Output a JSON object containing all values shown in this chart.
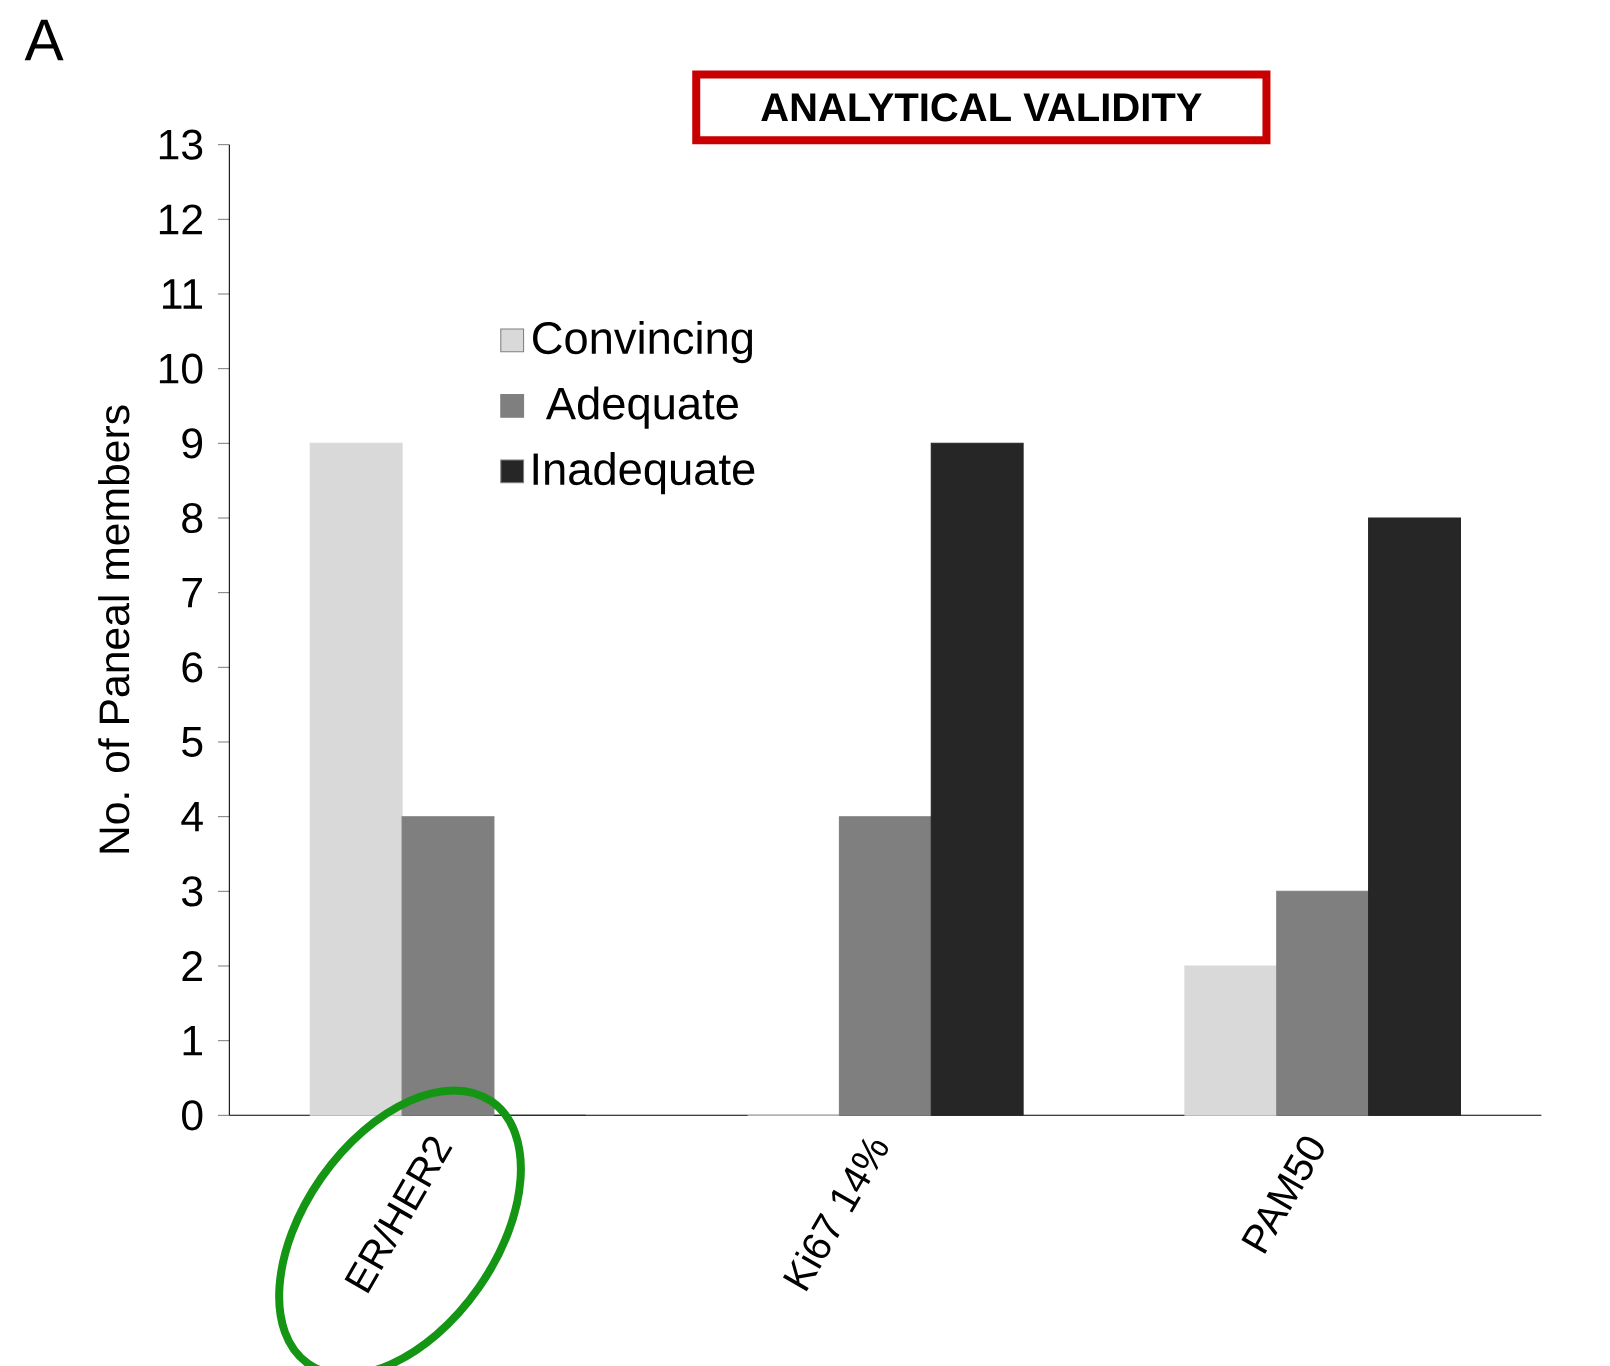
{
  "chart_data": {
    "type": "bar",
    "title": "ANALYTICAL VALIDITY",
    "ylabel": "No. of Paneal members",
    "annotations": [
      "A"
    ],
    "categories": [
      "ER/HER2",
      "Ki67 14%",
      "PAM50"
    ],
    "series": [
      {
        "name": "Convincing",
        "color": "#d9d9d9",
        "values": [
          9,
          0,
          2
        ]
      },
      {
        "name": "Adequate",
        "color": "#7f7f7f",
        "values": [
          4,
          4,
          3
        ]
      },
      {
        "name": "Inadequate",
        "color": "#262626",
        "values": [
          0,
          9,
          8
        ]
      }
    ],
    "ylim": [
      0,
      13
    ],
    "yticks": [
      0,
      1,
      2,
      3,
      4,
      5,
      6,
      7,
      8,
      9,
      10,
      11,
      12,
      13
    ],
    "legend": "top"
  }
}
